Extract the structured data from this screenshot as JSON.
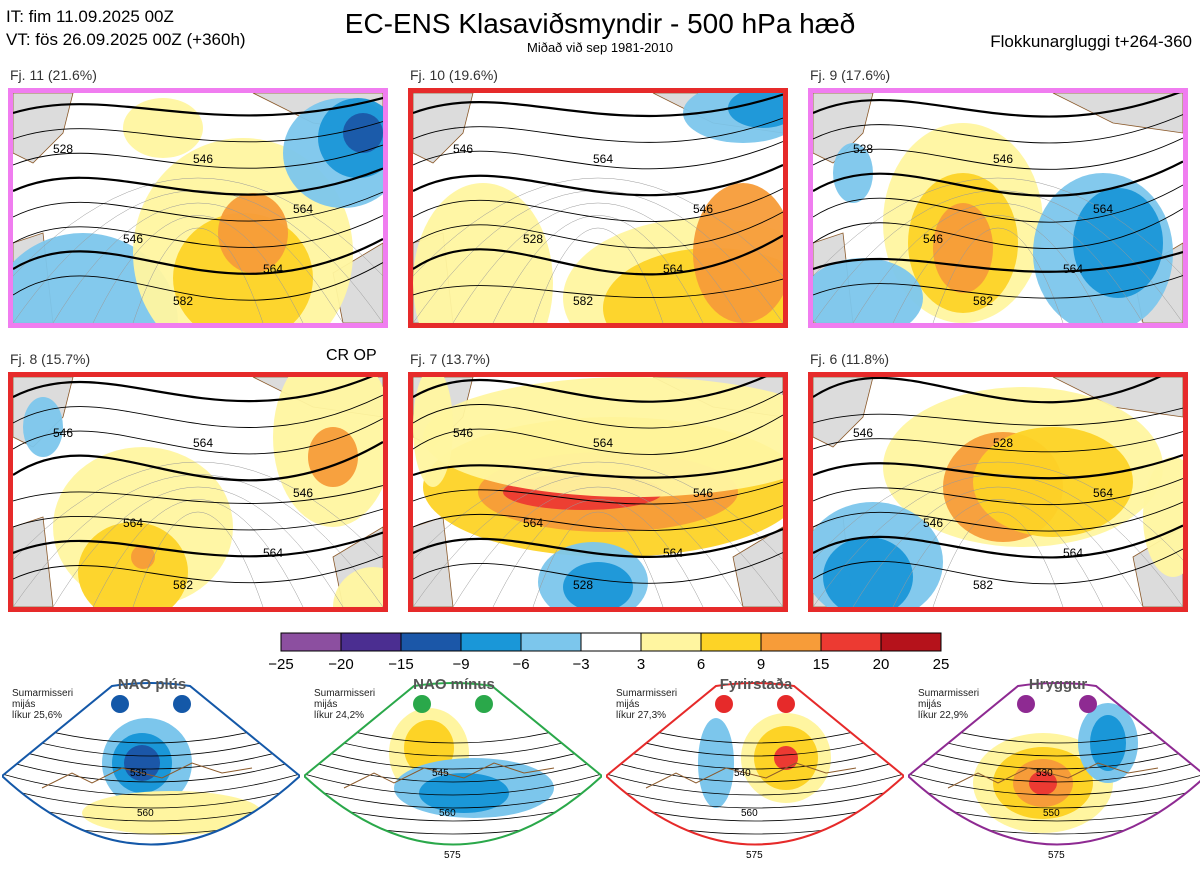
{
  "header": {
    "init_time": "IT: fim 11.09.2025 00Z",
    "valid_time": "VT: fös 26.09.2025 00Z  (+360h)",
    "title": "EC-ENS Klasaviðsmyndir - 500 hPa hæð",
    "subtitle": "Miðað við sep 1981-2010",
    "window": "Flokkunargluggi t+264-360"
  },
  "panels": [
    {
      "label": "Fj. 11 (21.6%)",
      "border": "#f07df0",
      "contours": [
        "528",
        "546",
        "546",
        "564",
        "564",
        "582"
      ]
    },
    {
      "label": "Fj. 10 (19.6%)",
      "border": "#e62a2a",
      "contours": [
        "546",
        "564",
        "528",
        "546",
        "564",
        "582"
      ]
    },
    {
      "label": "Fj. 9 (17.6%)",
      "border": "#f07df0",
      "contours": [
        "528",
        "546",
        "546",
        "564",
        "564",
        "582"
      ]
    },
    {
      "label": "Fj. 8 (15.7%)",
      "border": "#e62a2a",
      "contours": [
        "546",
        "564",
        "564",
        "546",
        "564",
        "582"
      ]
    },
    {
      "label": "Fj. 7 (13.7%)",
      "border": "#e62a2a",
      "contours": [
        "546",
        "564",
        "564",
        "546",
        "564",
        "528"
      ]
    },
    {
      "label": "Fj. 6 (11.8%)",
      "border": "#e62a2a",
      "contours": [
        "546",
        "528",
        "546",
        "564",
        "564",
        "582"
      ]
    }
  ],
  "cr_op_label": "CR OP",
  "colorbar": {
    "ticks": [
      "−25",
      "−20",
      "−15",
      "−9",
      "−6",
      "−3",
      "3",
      "6",
      "9",
      "15",
      "20",
      "25"
    ],
    "colors": [
      "#8c4fa0",
      "#4b2e91",
      "#1b57a8",
      "#1a97d8",
      "#7cc6ec",
      "#ffffff",
      "#fff5a0",
      "#fdd326",
      "#f79c39",
      "#ec3a32",
      "#b5121b"
    ]
  },
  "regimes": [
    {
      "name": "NAO plús",
      "note1": "Sumarmisseri",
      "note2": "mijás",
      "note3": "líkur 25,6%",
      "color": "#1458a8",
      "contours": [
        "535",
        "560"
      ]
    },
    {
      "name": "NAO mínus",
      "note1": "Sumarmisseri",
      "note2": "mijás",
      "note3": "líkur 24,2%",
      "color": "#2aa84a",
      "contours": [
        "545",
        "560",
        "575"
      ]
    },
    {
      "name": "Fyrirstaða",
      "note1": "Sumarmisseri",
      "note2": "mijás",
      "note3": "líkur 27,3%",
      "color": "#e62a2a",
      "contours": [
        "540",
        "560",
        "575"
      ]
    },
    {
      "name": "Hryggur",
      "note1": "Sumarmisseri",
      "note2": "mijás",
      "note3": "líkur 22,9%",
      "color": "#8e2a92",
      "contours": [
        "530",
        "550",
        "575"
      ]
    }
  ]
}
